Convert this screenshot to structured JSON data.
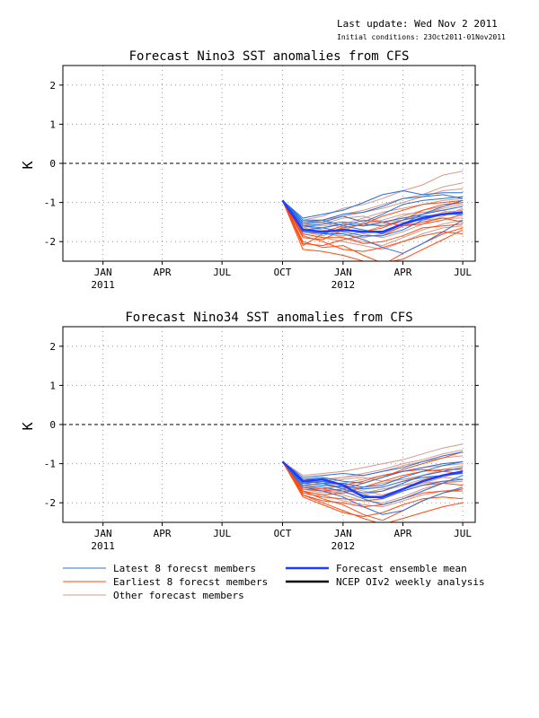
{
  "header": {
    "last_update": "Last update: Wed Nov 2 2011",
    "initial_conditions": "Initial conditions: 23Oct2011-01Nov2011"
  },
  "legend": {
    "items": [
      {
        "label": "Latest 8 forecst members",
        "color": "#2a6fd8",
        "width": 1
      },
      {
        "label": "Forecast ensemble mean",
        "color": "#1e3cff",
        "width": 2.5
      },
      {
        "label": "Earliest 8 forecst members",
        "color": "#ff4a12",
        "width": 1
      },
      {
        "label": "NCEP OIv2 weekly analysis",
        "color": "#000000",
        "width": 2.5
      },
      {
        "label": "Other forecast members",
        "color": "#d49a8a",
        "width": 1
      }
    ]
  },
  "chart_data": [
    {
      "type": "line",
      "title": "Forecast Nino3 SST anomalies from CFS",
      "ylabel": "K",
      "ylim": [
        -2.5,
        2.5
      ],
      "yticks": [
        "2",
        "1",
        "0",
        "-1",
        "-2"
      ],
      "xlim": [
        "2010-11-01",
        "2012-07-20"
      ],
      "xticks": [
        {
          "date": "2011-01-01",
          "label": "JAN",
          "sub": "2011"
        },
        {
          "date": "2011-04-01",
          "label": "APR",
          "sub": ""
        },
        {
          "date": "2011-07-01",
          "label": "JUL",
          "sub": ""
        },
        {
          "date": "2011-10-01",
          "label": "OCT",
          "sub": ""
        },
        {
          "date": "2012-01-01",
          "label": "JAN",
          "sub": "2012"
        },
        {
          "date": "2012-04-01",
          "label": "APR",
          "sub": ""
        },
        {
          "date": "2012-07-01",
          "label": "JUL",
          "sub": ""
        }
      ],
      "grid": true,
      "months": [
        "2011-10-01",
        "2011-11-01",
        "2011-12-01",
        "2012-01-01",
        "2012-02-01",
        "2012-03-01",
        "2012-04-01",
        "2012-05-01",
        "2012-06-01",
        "2012-07-01"
      ],
      "series": [
        {
          "group": "latest",
          "values": [
            -0.95,
            -1.4,
            -1.3,
            -1.2,
            -1.0,
            -0.8,
            -0.7,
            -0.8,
            -0.75,
            -0.75
          ]
        },
        {
          "group": "latest",
          "values": [
            -0.95,
            -1.5,
            -1.45,
            -1.3,
            -1.25,
            -1.1,
            -0.9,
            -0.85,
            -0.8,
            -0.9
          ]
        },
        {
          "group": "latest",
          "values": [
            -0.95,
            -1.6,
            -1.65,
            -1.55,
            -1.6,
            -1.5,
            -1.4,
            -1.3,
            -1.2,
            -1.1
          ]
        },
        {
          "group": "latest",
          "values": [
            -0.95,
            -1.75,
            -1.8,
            -1.8,
            -1.95,
            -2.15,
            -2.3,
            -2.05,
            -1.75,
            -1.45
          ]
        },
        {
          "group": "latest",
          "values": [
            -0.95,
            -1.45,
            -1.45,
            -1.6,
            -1.7,
            -1.8,
            -1.55,
            -1.3,
            -1.1,
            -0.95
          ]
        },
        {
          "group": "latest",
          "values": [
            -0.95,
            -1.55,
            -1.5,
            -1.35,
            -1.5,
            -1.3,
            -1.05,
            -0.95,
            -0.9,
            -0.85
          ]
        },
        {
          "group": "latest",
          "values": [
            -0.95,
            -1.7,
            -1.65,
            -1.75,
            -1.85,
            -1.85,
            -1.7,
            -1.45,
            -1.3,
            -1.25
          ]
        },
        {
          "group": "latest",
          "values": [
            -0.95,
            -1.6,
            -1.55,
            -1.5,
            -1.55,
            -1.6,
            -1.45,
            -1.35,
            -1.3,
            -1.3
          ]
        },
        {
          "group": "earliest",
          "values": [
            -0.95,
            -2.0,
            -2.15,
            -2.1,
            -2.35,
            -2.55,
            -2.45,
            -2.2,
            -1.95,
            -1.7
          ]
        },
        {
          "group": "earliest",
          "values": [
            -0.95,
            -2.2,
            -2.25,
            -2.35,
            -2.5,
            -2.6,
            -2.3,
            -2.05,
            -1.8,
            -1.65
          ]
        },
        {
          "group": "earliest",
          "values": [
            -0.95,
            -1.9,
            -1.95,
            -1.7,
            -1.75,
            -1.65,
            -1.45,
            -1.2,
            -1.05,
            -1.0
          ]
        },
        {
          "group": "earliest",
          "values": [
            -0.95,
            -2.05,
            -2.1,
            -1.95,
            -1.85,
            -1.85,
            -1.6,
            -1.5,
            -1.4,
            -1.5
          ]
        },
        {
          "group": "earliest",
          "values": [
            -0.95,
            -1.7,
            -1.75,
            -1.6,
            -1.45,
            -1.5,
            -1.6,
            -1.55,
            -1.45,
            -1.3
          ]
        },
        {
          "group": "earliest",
          "values": [
            -0.95,
            -1.85,
            -2.0,
            -2.2,
            -2.25,
            -2.15,
            -2.0,
            -1.85,
            -1.75,
            -1.8
          ]
        },
        {
          "group": "earliest",
          "values": [
            -0.95,
            -2.1,
            -1.8,
            -1.65,
            -1.55,
            -1.35,
            -1.2,
            -1.05,
            -1.0,
            -0.95
          ]
        },
        {
          "group": "earliest",
          "values": [
            -0.95,
            -1.8,
            -1.9,
            -1.9,
            -2.05,
            -2.0,
            -1.85,
            -1.65,
            -1.6,
            -1.55
          ]
        },
        {
          "group": "other",
          "values": [
            -0.95,
            -1.45,
            -1.35,
            -1.15,
            -1.05,
            -0.9,
            -0.7,
            -0.55,
            -0.3,
            -0.2
          ]
        },
        {
          "group": "other",
          "values": [
            -0.95,
            -1.5,
            -1.45,
            -1.3,
            -1.2,
            -1.05,
            -0.9,
            -0.8,
            -0.6,
            -0.5
          ]
        },
        {
          "group": "other",
          "values": [
            -0.95,
            -1.55,
            -1.6,
            -1.55,
            -1.6,
            -1.55,
            -1.35,
            -1.2,
            -1.1,
            -1.0
          ]
        },
        {
          "group": "other",
          "values": [
            -0.95,
            -1.65,
            -1.75,
            -1.9,
            -2.0,
            -2.1,
            -1.9,
            -1.7,
            -1.55,
            -1.45
          ]
        },
        {
          "group": "other",
          "values": [
            -0.95,
            -1.7,
            -1.65,
            -1.55,
            -1.4,
            -1.25,
            -1.15,
            -1.05,
            -0.95,
            -0.9
          ]
        },
        {
          "group": "other",
          "values": [
            -0.95,
            -1.6,
            -1.7,
            -1.8,
            -1.9,
            -1.8,
            -1.6,
            -1.4,
            -1.25,
            -1.2
          ]
        },
        {
          "group": "other",
          "values": [
            -0.95,
            -1.75,
            -1.85,
            -1.7,
            -1.55,
            -1.45,
            -1.3,
            -1.25,
            -1.2,
            -1.35
          ]
        },
        {
          "group": "other",
          "values": [
            -0.95,
            -1.5,
            -1.5,
            -1.65,
            -1.8,
            -1.9,
            -1.75,
            -1.55,
            -1.35,
            -1.15
          ]
        },
        {
          "group": "other",
          "values": [
            -0.95,
            -1.65,
            -1.55,
            -1.4,
            -1.35,
            -1.5,
            -1.45,
            -1.3,
            -1.15,
            -1.05
          ]
        },
        {
          "group": "other",
          "values": [
            -0.95,
            -1.8,
            -1.9,
            -2.0,
            -2.1,
            -2.2,
            -2.0,
            -1.8,
            -1.65,
            -1.6
          ]
        },
        {
          "group": "other",
          "values": [
            -0.95,
            -1.55,
            -1.45,
            -1.35,
            -1.25,
            -1.15,
            -1.0,
            -0.85,
            -0.7,
            -0.65
          ]
        },
        {
          "group": "other",
          "values": [
            -0.95,
            -1.7,
            -1.8,
            -1.85,
            -1.75,
            -1.6,
            -1.5,
            -1.45,
            -1.4,
            -1.4
          ]
        },
        {
          "group": "mean",
          "values": [
            -0.95,
            -1.7,
            -1.75,
            -1.7,
            -1.75,
            -1.75,
            -1.55,
            -1.4,
            -1.3,
            -1.25
          ]
        }
      ]
    },
    {
      "type": "line",
      "title": "Forecast Nino34 SST anomalies from CFS",
      "ylabel": "K",
      "ylim": [
        -2.5,
        2.5
      ],
      "yticks": [
        "2",
        "1",
        "0",
        "-1",
        "-2"
      ],
      "xlim": [
        "2010-11-01",
        "2012-07-20"
      ],
      "xticks": [
        {
          "date": "2011-01-01",
          "label": "JAN",
          "sub": "2011"
        },
        {
          "date": "2011-04-01",
          "label": "APR",
          "sub": ""
        },
        {
          "date": "2011-07-01",
          "label": "JUL",
          "sub": ""
        },
        {
          "date": "2011-10-01",
          "label": "OCT",
          "sub": ""
        },
        {
          "date": "2012-01-01",
          "label": "JAN",
          "sub": "2012"
        },
        {
          "date": "2012-04-01",
          "label": "APR",
          "sub": ""
        },
        {
          "date": "2012-07-01",
          "label": "JUL",
          "sub": ""
        }
      ],
      "grid": true,
      "months": [
        "2011-10-01",
        "2011-11-01",
        "2011-12-01",
        "2012-01-01",
        "2012-02-01",
        "2012-03-01",
        "2012-04-01",
        "2012-05-01",
        "2012-06-01",
        "2012-07-01"
      ],
      "series": [
        {
          "group": "latest",
          "values": [
            -0.95,
            -1.35,
            -1.3,
            -1.25,
            -1.3,
            -1.2,
            -1.1,
            -0.95,
            -0.8,
            -0.7
          ]
        },
        {
          "group": "latest",
          "values": [
            -0.95,
            -1.45,
            -1.5,
            -1.5,
            -1.6,
            -1.55,
            -1.35,
            -1.2,
            -1.05,
            -0.95
          ]
        },
        {
          "group": "latest",
          "values": [
            -0.95,
            -1.55,
            -1.6,
            -1.7,
            -1.9,
            -2.05,
            -1.9,
            -1.7,
            -1.5,
            -1.3
          ]
        },
        {
          "group": "latest",
          "values": [
            -0.95,
            -1.6,
            -1.7,
            -1.85,
            -2.1,
            -2.3,
            -2.2,
            -1.95,
            -1.75,
            -1.6
          ]
        },
        {
          "group": "latest",
          "values": [
            -0.95,
            -1.4,
            -1.35,
            -1.45,
            -1.5,
            -1.35,
            -1.2,
            -1.1,
            -1.0,
            -0.95
          ]
        },
        {
          "group": "latest",
          "values": [
            -0.95,
            -1.5,
            -1.55,
            -1.6,
            -1.75,
            -1.7,
            -1.5,
            -1.3,
            -1.2,
            -1.1
          ]
        },
        {
          "group": "latest",
          "values": [
            -0.95,
            -1.5,
            -1.45,
            -1.55,
            -1.65,
            -1.6,
            -1.45,
            -1.35,
            -1.3,
            -1.25
          ]
        },
        {
          "group": "latest",
          "values": [
            -0.95,
            -1.45,
            -1.5,
            -1.65,
            -1.8,
            -1.9,
            -1.7,
            -1.55,
            -1.45,
            -1.4
          ]
        },
        {
          "group": "earliest",
          "values": [
            -0.95,
            -1.8,
            -2.0,
            -2.2,
            -2.4,
            -2.55,
            -2.4,
            -2.25,
            -2.1,
            -2.0
          ]
        },
        {
          "group": "earliest",
          "values": [
            -0.95,
            -1.7,
            -1.9,
            -2.05,
            -2.3,
            -2.45,
            -2.2,
            -1.95,
            -1.75,
            -1.65
          ]
        },
        {
          "group": "earliest",
          "values": [
            -0.95,
            -1.65,
            -1.7,
            -1.65,
            -1.5,
            -1.35,
            -1.15,
            -1.0,
            -0.85,
            -0.7
          ]
        },
        {
          "group": "earliest",
          "values": [
            -0.95,
            -1.75,
            -1.85,
            -1.9,
            -1.95,
            -1.9,
            -1.7,
            -1.55,
            -1.5,
            -1.55
          ]
        },
        {
          "group": "earliest",
          "values": [
            -0.95,
            -1.6,
            -1.65,
            -1.55,
            -1.45,
            -1.3,
            -1.2,
            -1.15,
            -1.2,
            -1.25
          ]
        },
        {
          "group": "earliest",
          "values": [
            -0.95,
            -1.85,
            -2.05,
            -2.25,
            -2.35,
            -2.25,
            -2.05,
            -1.9,
            -1.85,
            -1.9
          ]
        },
        {
          "group": "earliest",
          "values": [
            -0.95,
            -1.7,
            -1.8,
            -1.75,
            -1.6,
            -1.45,
            -1.3,
            -1.2,
            -1.15,
            -1.15
          ]
        },
        {
          "group": "earliest",
          "values": [
            -0.95,
            -1.8,
            -1.95,
            -2.0,
            -2.1,
            -2.05,
            -1.9,
            -1.75,
            -1.7,
            -1.7
          ]
        },
        {
          "group": "other",
          "values": [
            -0.95,
            -1.3,
            -1.25,
            -1.2,
            -1.1,
            -1.0,
            -0.9,
            -0.75,
            -0.6,
            -0.5
          ]
        },
        {
          "group": "other",
          "values": [
            -0.95,
            -1.4,
            -1.4,
            -1.35,
            -1.3,
            -1.2,
            -1.05,
            -0.95,
            -0.85,
            -0.8
          ]
        },
        {
          "group": "other",
          "values": [
            -0.95,
            -1.45,
            -1.5,
            -1.6,
            -1.65,
            -1.6,
            -1.45,
            -1.3,
            -1.15,
            -1.05
          ]
        },
        {
          "group": "other",
          "values": [
            -0.95,
            -1.55,
            -1.65,
            -1.8,
            -1.95,
            -2.0,
            -1.85,
            -1.65,
            -1.5,
            -1.45
          ]
        },
        {
          "group": "other",
          "values": [
            -0.95,
            -1.5,
            -1.55,
            -1.5,
            -1.4,
            -1.3,
            -1.2,
            -1.1,
            -1.05,
            -1.0
          ]
        },
        {
          "group": "other",
          "values": [
            -0.95,
            -1.6,
            -1.7,
            -1.75,
            -1.8,
            -1.7,
            -1.55,
            -1.4,
            -1.3,
            -1.25
          ]
        },
        {
          "group": "other",
          "values": [
            -0.95,
            -1.65,
            -1.75,
            -1.7,
            -1.6,
            -1.5,
            -1.4,
            -1.35,
            -1.35,
            -1.4
          ]
        },
        {
          "group": "other",
          "values": [
            -0.95,
            -1.45,
            -1.45,
            -1.55,
            -1.7,
            -1.8,
            -1.65,
            -1.5,
            -1.35,
            -1.2
          ]
        },
        {
          "group": "other",
          "values": [
            -0.95,
            -1.55,
            -1.5,
            -1.4,
            -1.35,
            -1.45,
            -1.4,
            -1.3,
            -1.2,
            -1.1
          ]
        },
        {
          "group": "other",
          "values": [
            -0.95,
            -1.7,
            -1.8,
            -1.95,
            -2.05,
            -2.1,
            -1.95,
            -1.8,
            -1.7,
            -1.65
          ]
        },
        {
          "group": "other",
          "values": [
            -0.95,
            -1.5,
            -1.45,
            -1.35,
            -1.25,
            -1.15,
            -1.0,
            -0.9,
            -0.75,
            -0.65
          ]
        },
        {
          "group": "other",
          "values": [
            -0.95,
            -1.6,
            -1.65,
            -1.7,
            -1.75,
            -1.65,
            -1.55,
            -1.5,
            -1.45,
            -1.45
          ]
        },
        {
          "group": "mean",
          "values": [
            -0.95,
            -1.45,
            -1.4,
            -1.55,
            -1.85,
            -1.85,
            -1.65,
            -1.45,
            -1.3,
            -1.2
          ]
        }
      ]
    }
  ]
}
